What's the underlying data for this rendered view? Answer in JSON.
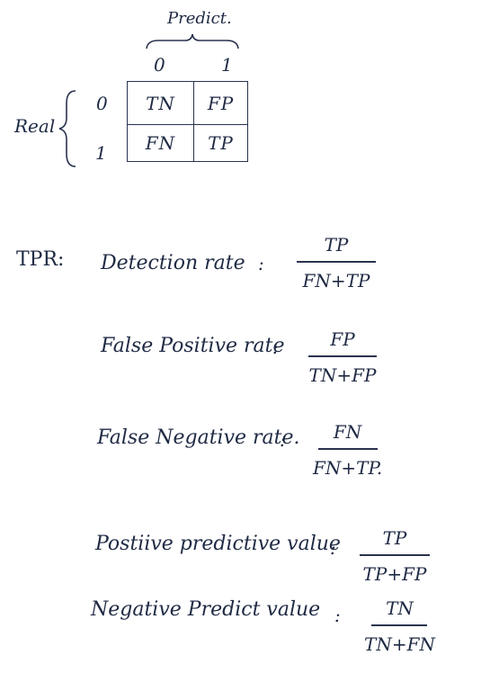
{
  "matrix": {
    "header": "Predict.",
    "col_labels": [
      "0",
      "1"
    ],
    "row_title": "Real",
    "row_labels": [
      "0",
      "1"
    ],
    "cells": [
      [
        "TN",
        "FP"
      ],
      [
        "FN",
        "TP"
      ]
    ]
  },
  "tpr_label": "TPR:",
  "metrics": [
    {
      "label": "Detection rate",
      "colon": ":",
      "numerator": "TP",
      "denominator": "FN+TP"
    },
    {
      "label": "False Positive rate",
      "colon": ":",
      "numerator": "FP",
      "denominator": "TN+FP"
    },
    {
      "label": "False Negative rate.",
      "colon": ":",
      "numerator": "FN",
      "denominator": "FN+TP."
    },
    {
      "label": "Postiive predictive value",
      "colon": ":",
      "numerator": "TP",
      "denominator": "TP+FP"
    },
    {
      "label": "Negative Predict value",
      "colon": ":",
      "numerator": "TN",
      "denominator": "TN+FN"
    }
  ]
}
